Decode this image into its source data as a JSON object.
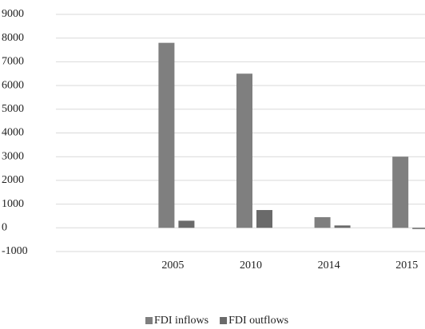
{
  "chart_data": {
    "type": "bar",
    "categories": [
      null,
      "2005",
      "2010",
      "2014",
      "2015"
    ],
    "series": [
      {
        "name": "FDI inflows",
        "color": "#7f7f7f",
        "values": [
          null,
          7800,
          6500,
          450,
          3000
        ]
      },
      {
        "name": "FDI outflows",
        "color": "#6a6a6a",
        "values": [
          null,
          300,
          750,
          100,
          -50
        ]
      }
    ],
    "ylim": [
      -1000,
      9000
    ],
    "yticks": [
      -1000,
      0,
      1000,
      2000,
      3000,
      4000,
      5000,
      6000,
      7000,
      8000,
      9000
    ],
    "grid": true,
    "legend": "bottom"
  }
}
